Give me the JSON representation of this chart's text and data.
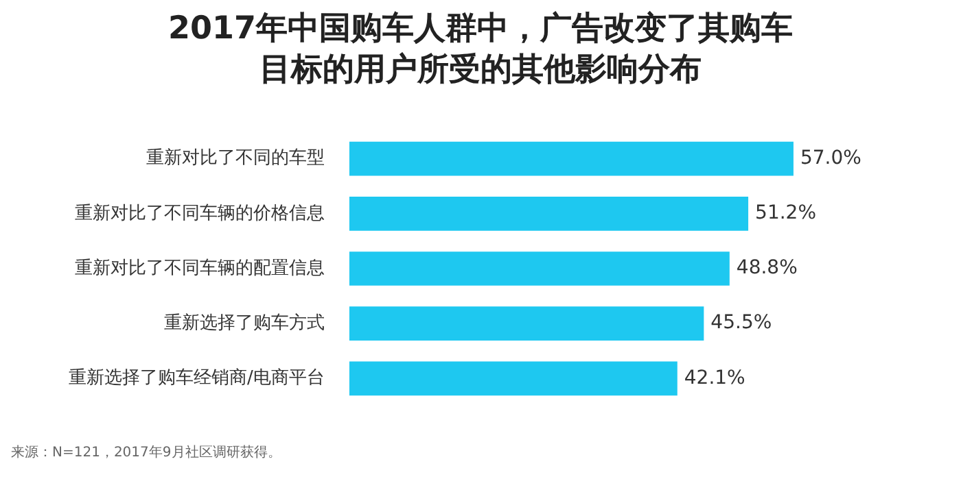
{
  "chart_data": {
    "type": "bar",
    "orientation": "horizontal",
    "title": "2017年中国购车人群中，广告改变了其购车目标的用户所受的其他影响分布",
    "categories": [
      "重新对比了不同的车型",
      "重新对比了不同车辆的价格信息",
      "重新对比了不同车辆的配置信息",
      "重新选择了购车方式",
      "重新选择了购车经销商/电商平台"
    ],
    "values": [
      57.0,
      51.2,
      48.8,
      45.5,
      42.1
    ],
    "value_labels": [
      "57.0%",
      "51.2%",
      "48.8%",
      "45.5%",
      "42.1%"
    ],
    "color": "#1ec8f0",
    "tick_labels": "y",
    "legend": false,
    "annotations": [
      "来源：N=121，2017年9月社区调研获得。"
    ]
  }
}
